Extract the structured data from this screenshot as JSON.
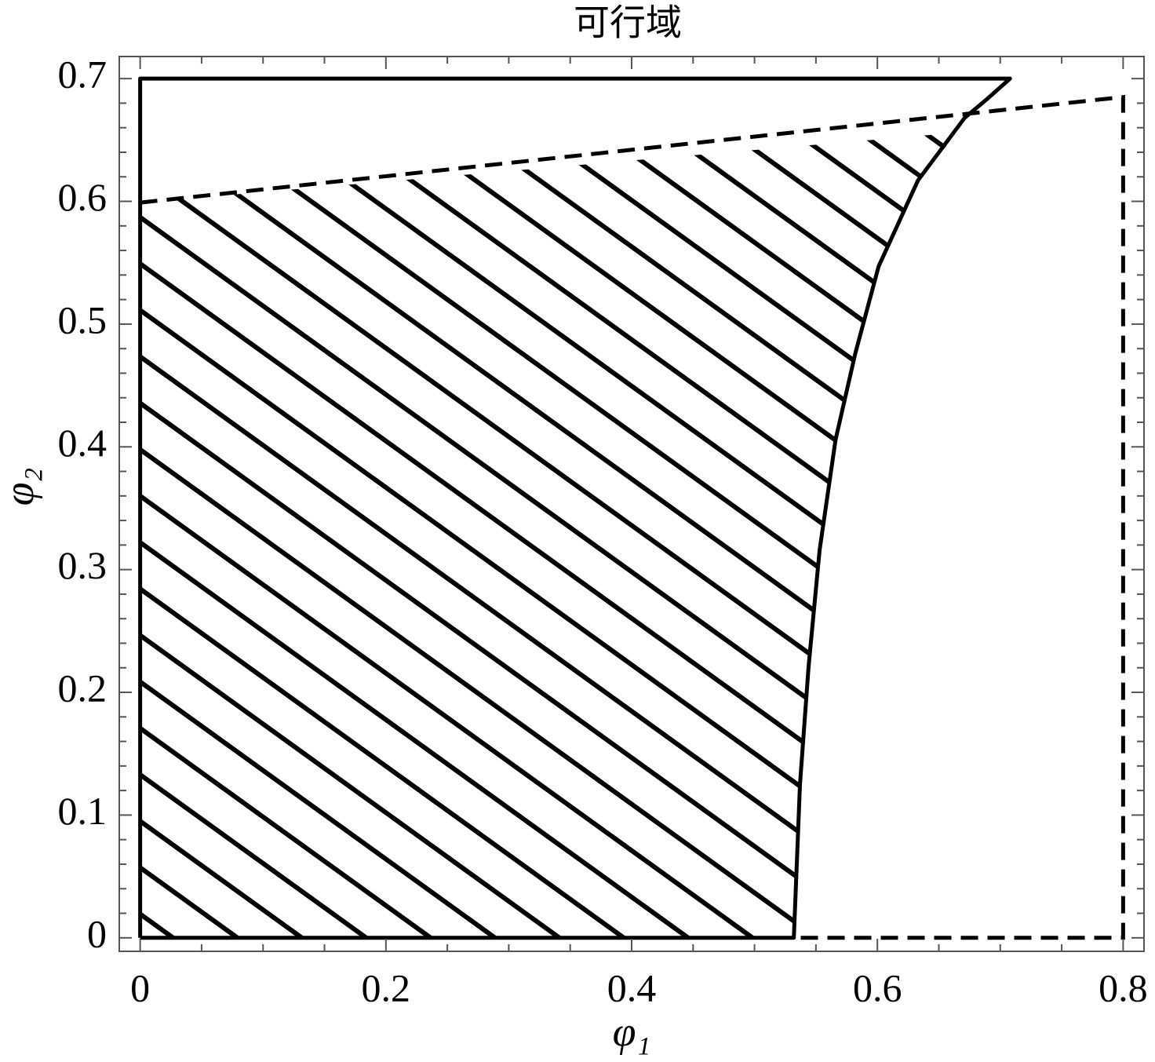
{
  "chart_data": {
    "type": "region",
    "title": "可行域",
    "x_label": "φ₁",
    "y_label": "φ₂",
    "xlim": [
      -0.017,
      0.817
    ],
    "ylim": [
      -0.011,
      0.718
    ],
    "xticks": [
      0,
      0.2,
      0.4,
      0.6,
      0.8
    ],
    "yticks": [
      0,
      0.1,
      0.2,
      0.3,
      0.4,
      0.5,
      0.6,
      0.7
    ],
    "xminorticks": [
      0.05,
      0.1,
      0.15,
      0.25,
      0.3,
      0.35,
      0.45,
      0.5,
      0.55,
      0.65,
      0.7,
      0.75
    ],
    "yminorticks": [
      0.02,
      0.04,
      0.06,
      0.08,
      0.12,
      0.14,
      0.16,
      0.18,
      0.22,
      0.24,
      0.26,
      0.28,
      0.32,
      0.34,
      0.36,
      0.38,
      0.42,
      0.44,
      0.46,
      0.48,
      0.52,
      0.54,
      0.56,
      0.58,
      0.62,
      0.64,
      0.66,
      0.68
    ],
    "feasible_region": {
      "x": [
        0,
        0,
        0.665,
        0.633,
        0.601,
        0.582,
        0.566,
        0.553,
        0.544,
        0.537,
        0.532
      ],
      "y": [
        0,
        0.599,
        0.656,
        0.617,
        0.547,
        0.476,
        0.406,
        0.316,
        0.221,
        0.125,
        0
      ]
    },
    "boundary_solid": {
      "x": [
        0,
        0,
        0.708,
        0.69,
        0.671,
        0.633,
        0.601,
        0.582,
        0.566,
        0.553,
        0.544,
        0.537,
        0.532,
        0
      ],
      "y": [
        0,
        0.7,
        0.7,
        0.684,
        0.668,
        0.617,
        0.547,
        0.476,
        0.406,
        0.316,
        0.221,
        0.125,
        0,
        0
      ]
    },
    "boundary_dashed": {
      "x": [
        0,
        0.8,
        0.8,
        0.532
      ],
      "y": [
        0.599,
        0.685,
        0,
        0
      ]
    },
    "color": "#000000"
  }
}
